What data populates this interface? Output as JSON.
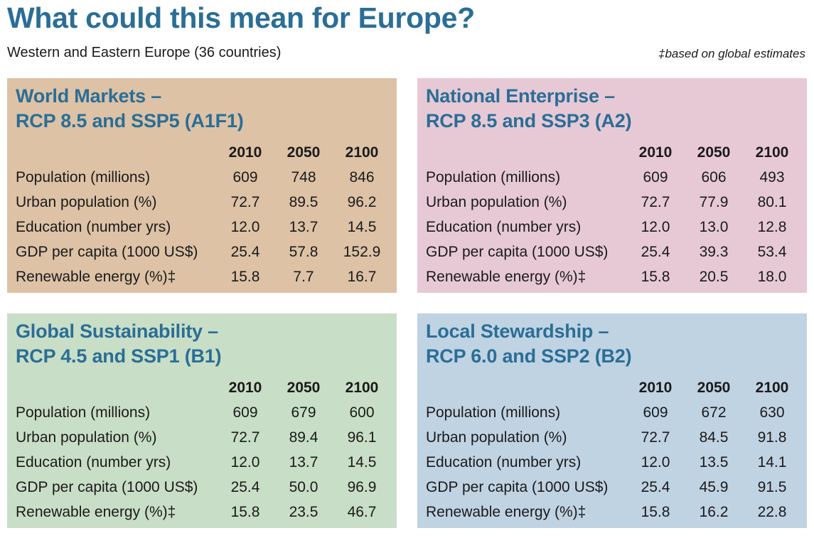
{
  "title": "What could this mean for Europe?",
  "subtitle": "Western and Eastern Europe (36 countries)",
  "footnote": "‡based on global estimates",
  "colors": {
    "title": "#2a6e96",
    "world_markets_bg": "#ddc2a6",
    "national_enterprise_bg": "#e7c9d6",
    "global_sustainability_bg": "#c9dec6",
    "local_stewardship_bg": "#c0d3e3"
  },
  "years": [
    "2010",
    "2050",
    "2100"
  ],
  "row_labels": [
    "Population (millions)",
    "Urban population (%)",
    "Education (number yrs)",
    "GDP per capita (1000 US$)",
    "Renewable energy (%)‡"
  ],
  "scenarios": [
    {
      "title_line1": "World Markets –",
      "title_line2": "RCP 8.5 and SSP5 (A1F1)",
      "rows": [
        [
          "609",
          "748",
          "846"
        ],
        [
          "72.7",
          "89.5",
          "96.2"
        ],
        [
          "12.0",
          "13.7",
          "14.5"
        ],
        [
          "25.4",
          "57.8",
          "152.9"
        ],
        [
          "15.8",
          "7.7",
          "16.7"
        ]
      ]
    },
    {
      "title_line1": "National Enterprise –",
      "title_line2": "RCP 8.5 and SSP3 (A2)",
      "rows": [
        [
          "609",
          "606",
          "493"
        ],
        [
          "72.7",
          "77.9",
          "80.1"
        ],
        [
          "12.0",
          "13.0",
          "12.8"
        ],
        [
          "25.4",
          "39.3",
          "53.4"
        ],
        [
          "15.8",
          "20.5",
          "18.0"
        ]
      ]
    },
    {
      "title_line1": "Global Sustainability –",
      "title_line2": "RCP 4.5 and SSP1 (B1)",
      "rows": [
        [
          "609",
          "679",
          "600"
        ],
        [
          "72.7",
          "89.4",
          "96.1"
        ],
        [
          "12.0",
          "13.7",
          "14.5"
        ],
        [
          "25.4",
          "50.0",
          "96.9"
        ],
        [
          "15.8",
          "23.5",
          "46.7"
        ]
      ]
    },
    {
      "title_line1": "Local Stewardship –",
      "title_line2": "RCP 6.0 and SSP2 (B2)",
      "rows": [
        [
          "609",
          "672",
          "630"
        ],
        [
          "72.7",
          "84.5",
          "91.8"
        ],
        [
          "12.0",
          "13.5",
          "14.1"
        ],
        [
          "25.4",
          "45.9",
          "91.5"
        ],
        [
          "15.8",
          "16.2",
          "22.8"
        ]
      ]
    }
  ]
}
